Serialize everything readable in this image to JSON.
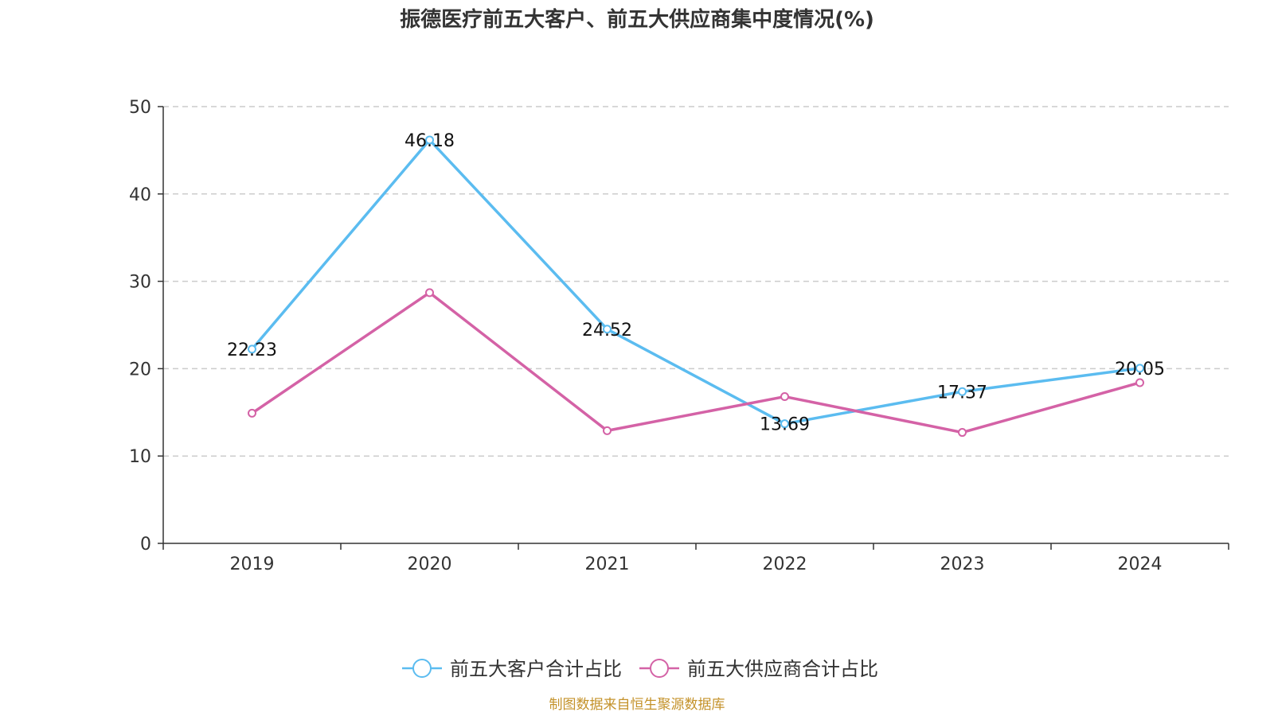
{
  "chart_data": {
    "type": "line",
    "title": "振德医疗前五大客户、前五大供应商集中度情况(%)",
    "categories": [
      "2019",
      "2020",
      "2021",
      "2022",
      "2023",
      "2024"
    ],
    "ylim": [
      0,
      50
    ],
    "yticks": [
      0,
      10,
      20,
      30,
      40,
      50
    ],
    "grid": true,
    "legend_position": "bottom",
    "series": [
      {
        "name": "前五大客户合计占比",
        "color": "#5bbcf0",
        "values": [
          22.23,
          46.18,
          24.52,
          13.69,
          17.37,
          20.05
        ],
        "labels": [
          "22.23",
          "46.18",
          "24.52",
          "13.69",
          "17.37",
          "20.05"
        ]
      },
      {
        "name": "前五大供应商合计占比",
        "color": "#d462a6",
        "values": [
          14.9,
          28.7,
          12.9,
          16.8,
          12.7,
          18.4
        ],
        "labels": null
      }
    ],
    "source": "制图数据来自恒生聚源数据库"
  }
}
